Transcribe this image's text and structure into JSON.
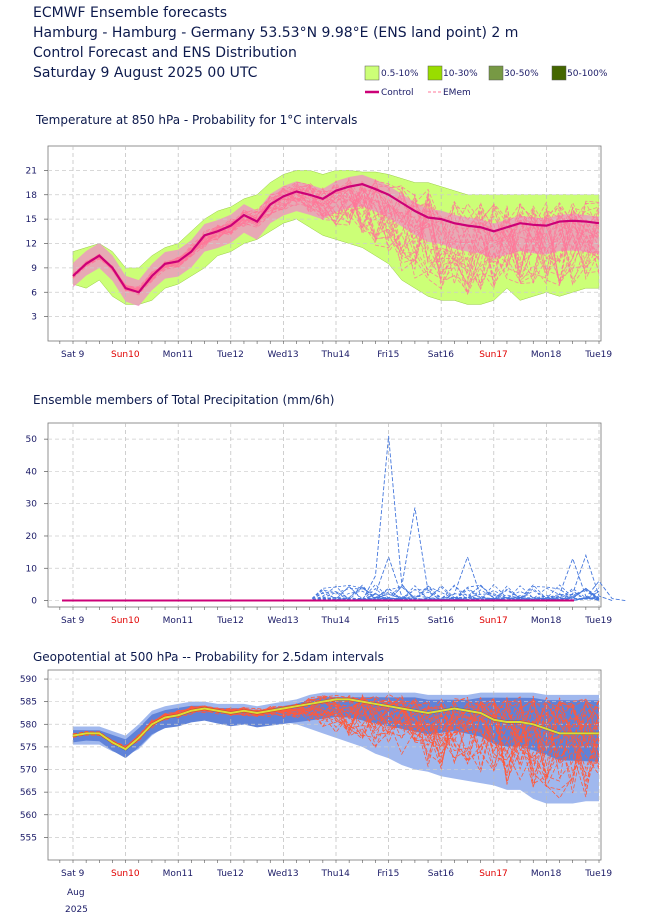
{
  "header": {
    "line1": "ECMWF Ensemble forecasts",
    "line2": "Hamburg - Hamburg - Germany 53.53°N 9.98°E (ENS land point) 2 m",
    "line3": "Control Forecast and ENS Distribution",
    "line4": "Saturday  9 August 2025 00 UTC"
  },
  "legend": {
    "bands": [
      {
        "label": "0.5-10%",
        "color": "#ccff77"
      },
      {
        "label": "10-30%",
        "color": "#99dd00"
      },
      {
        "label": "30-50%",
        "color": "#779944"
      },
      {
        "label": "50-100%",
        "color": "#446600"
      }
    ],
    "control_label": "Control",
    "control_color": "#cc0077",
    "emem_label": "EMem",
    "emem_color": "#ff7799"
  },
  "days": [
    {
      "label": "Sat 9",
      "weekend": false
    },
    {
      "label": "Sun10",
      "weekend": true
    },
    {
      "label": "Mon11",
      "weekend": false
    },
    {
      "label": "Tue12",
      "weekend": false
    },
    {
      "label": "Wed13",
      "weekend": false
    },
    {
      "label": "Thu14",
      "weekend": false
    },
    {
      "label": "Fri15",
      "weekend": false
    },
    {
      "label": "Sat16",
      "weekend": false
    },
    {
      "label": "Sun17",
      "weekend": true
    },
    {
      "label": "Mon18",
      "weekend": false
    },
    {
      "label": "Tue19",
      "weekend": false
    }
  ],
  "bottom_axis": {
    "month": "Aug",
    "year": "2025"
  },
  "chart_data": [
    {
      "type": "area",
      "title": "Temperature at 850 hPa - Probability for 1°C intervals",
      "yticks": [
        3,
        6,
        9,
        12,
        15,
        18,
        21
      ],
      "ylim": [
        0,
        24
      ],
      "x_unit": "days since Sat 9 00 UTC",
      "band_colors": {
        "outer": "#ccff77",
        "inner": "#f08cc8",
        "control": "#cc0077",
        "members": "#ff7799"
      },
      "control": {
        "x": [
          0,
          0.25,
          0.5,
          0.75,
          1,
          1.25,
          1.5,
          1.75,
          2,
          2.25,
          2.5,
          2.75,
          3,
          3.25,
          3.5,
          3.75,
          4,
          4.25,
          4.5,
          4.75,
          5,
          5.25,
          5.5,
          5.75,
          6,
          6.25,
          6.5,
          6.75,
          7,
          7.25,
          7.5,
          7.75,
          8,
          8.25,
          8.5,
          8.75,
          9,
          9.25,
          9.5,
          9.75,
          10
        ],
        "y": [
          8.0,
          9.5,
          10.5,
          9.0,
          6.5,
          6.0,
          8.0,
          9.5,
          9.8,
          11.0,
          13.0,
          13.5,
          14.2,
          15.5,
          14.7,
          16.8,
          17.8,
          18.4,
          18.0,
          17.5,
          18.5,
          19.0,
          19.3,
          18.7,
          18.0,
          17.0,
          16.0,
          15.2,
          15.0,
          14.5,
          14.2,
          14.0,
          13.5,
          14.0,
          14.5,
          14.3,
          14.2,
          14.7,
          14.8,
          14.7,
          14.5
        ]
      },
      "upper": [
        11.0,
        11.5,
        12.0,
        11.0,
        9.0,
        9.0,
        10.5,
        11.5,
        12.0,
        13.5,
        15.0,
        16.0,
        16.5,
        17.5,
        18.0,
        19.5,
        20.5,
        21.0,
        21.0,
        20.5,
        21.0,
        21.0,
        20.8,
        20.8,
        20.5,
        20.0,
        19.5,
        19.5,
        19.0,
        18.5,
        18.0,
        18.0,
        18.0,
        18.0,
        18.0,
        18.0,
        18.0,
        18.0,
        18.0,
        18.0,
        18.0
      ],
      "lower": [
        7.0,
        6.5,
        7.5,
        5.5,
        4.5,
        4.5,
        5.0,
        6.5,
        7.0,
        8.0,
        9.0,
        10.5,
        11.0,
        12.0,
        12.5,
        13.5,
        14.5,
        15.0,
        14.0,
        13.0,
        12.5,
        12.0,
        11.5,
        10.5,
        9.5,
        7.5,
        6.5,
        5.5,
        5.0,
        5.0,
        4.5,
        4.5,
        5.0,
        6.5,
        5.0,
        5.5,
        6.0,
        5.5,
        6.0,
        6.5,
        6.5
      ]
    },
    {
      "type": "line",
      "title": "Ensemble members of Total Precipitation (mm/6h)",
      "yticks": [
        0,
        10,
        20,
        30,
        40,
        50
      ],
      "ylim": [
        -2,
        55
      ],
      "member_color": "#4477dd",
      "control_color": "#cc0077",
      "spikes": [
        {
          "x": 5.5,
          "peaks": [
            {
              "x": 6.0,
              "y": 51.0
            },
            {
              "x": 6.5,
              "y": 28.8
            },
            {
              "x": 7.5,
              "y": 13.5
            },
            {
              "x": 9.75,
              "y": 14.0
            },
            {
              "x": 9.5,
              "y": 13.0
            },
            {
              "x": 6.0,
              "y": 13.5
            },
            {
              "x": 10.0,
              "y": 6.0
            }
          ]
        }
      ]
    },
    {
      "type": "area",
      "title": "Geopotential at 500 hPa -- Probability for 2.5dam intervals",
      "yticks": [
        555,
        560,
        565,
        570,
        575,
        580,
        585,
        590
      ],
      "ylim": [
        550,
        592
      ],
      "band_colors": {
        "outer": "#a0b8ee",
        "middle": "#5f82d8",
        "control": "#dddd33",
        "members": "#ff5a3c"
      },
      "control": {
        "x": [
          0,
          0.25,
          0.5,
          0.75,
          1,
          1.25,
          1.5,
          1.75,
          2,
          2.25,
          2.5,
          2.75,
          3,
          3.25,
          3.5,
          3.75,
          4,
          4.25,
          4.5,
          4.75,
          5,
          5.25,
          5.5,
          5.75,
          6,
          6.25,
          6.5,
          6.75,
          7,
          7.25,
          7.5,
          7.75,
          8,
          8.25,
          8.5,
          8.75,
          9,
          9.25,
          9.5,
          9.75,
          10
        ],
        "y": [
          577.5,
          578.0,
          578.0,
          576.0,
          574.5,
          577.0,
          580.0,
          581.5,
          582.0,
          583.0,
          583.5,
          583.0,
          582.5,
          583.0,
          582.5,
          583.0,
          583.5,
          584.0,
          584.5,
          585.0,
          585.5,
          585.5,
          585.0,
          584.5,
          584.0,
          583.5,
          583.0,
          582.5,
          583.0,
          583.5,
          583.0,
          582.5,
          581.0,
          580.5,
          580.5,
          580.0,
          579.0,
          578.0,
          578.0,
          578.0,
          578.0
        ]
      },
      "upper": [
        579.5,
        579.5,
        579.5,
        578.5,
        577.5,
        580.0,
        583.0,
        584.0,
        584.5,
        585.0,
        585.0,
        584.5,
        584.5,
        584.5,
        584.0,
        584.5,
        585.0,
        585.5,
        586.5,
        587.0,
        587.0,
        587.0,
        587.0,
        587.0,
        587.0,
        587.0,
        587.0,
        586.5,
        586.5,
        586.5,
        586.5,
        587.0,
        587.0,
        587.0,
        587.0,
        587.0,
        586.5,
        586.5,
        586.5,
        586.5,
        586.5
      ],
      "lower": [
        575.5,
        575.5,
        575.5,
        574.0,
        573.0,
        574.5,
        577.5,
        579.5,
        580.0,
        581.0,
        581.5,
        581.5,
        580.5,
        581.0,
        580.5,
        580.5,
        580.5,
        580.0,
        579.0,
        578.0,
        577.0,
        576.0,
        575.0,
        573.5,
        572.5,
        571.0,
        570.0,
        569.5,
        568.5,
        568.0,
        567.5,
        567.0,
        566.5,
        565.5,
        565.5,
        563.5,
        562.5,
        562.5,
        562.5,
        563.0,
        563.0
      ]
    }
  ]
}
